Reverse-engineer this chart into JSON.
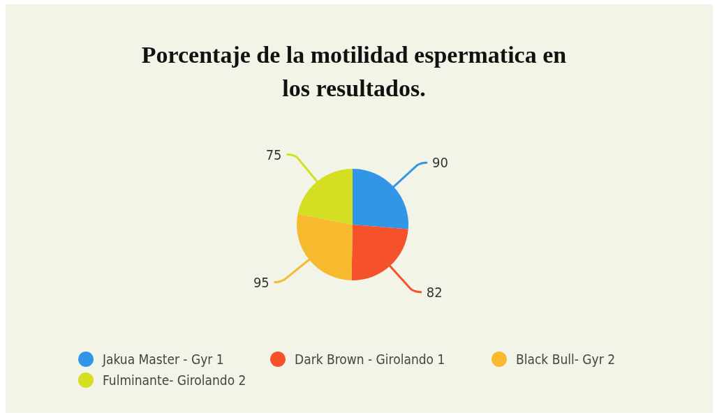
{
  "chart_data": {
    "type": "pie",
    "title": "Porcentaje de la motilidad espermatica en los resultados.",
    "categories": [
      "Jakua Master - Gyr 1",
      "Dark Brown - Girolando 1",
      "Black Bull- Gyr 2",
      "Fulminante- Girolando 2"
    ],
    "values": [
      90,
      82,
      95,
      75
    ],
    "colors": [
      "#3196e8",
      "#f5512b",
      "#f7b92e",
      "#d4de22"
    ],
    "data_labels": true,
    "legend": "bottom"
  }
}
